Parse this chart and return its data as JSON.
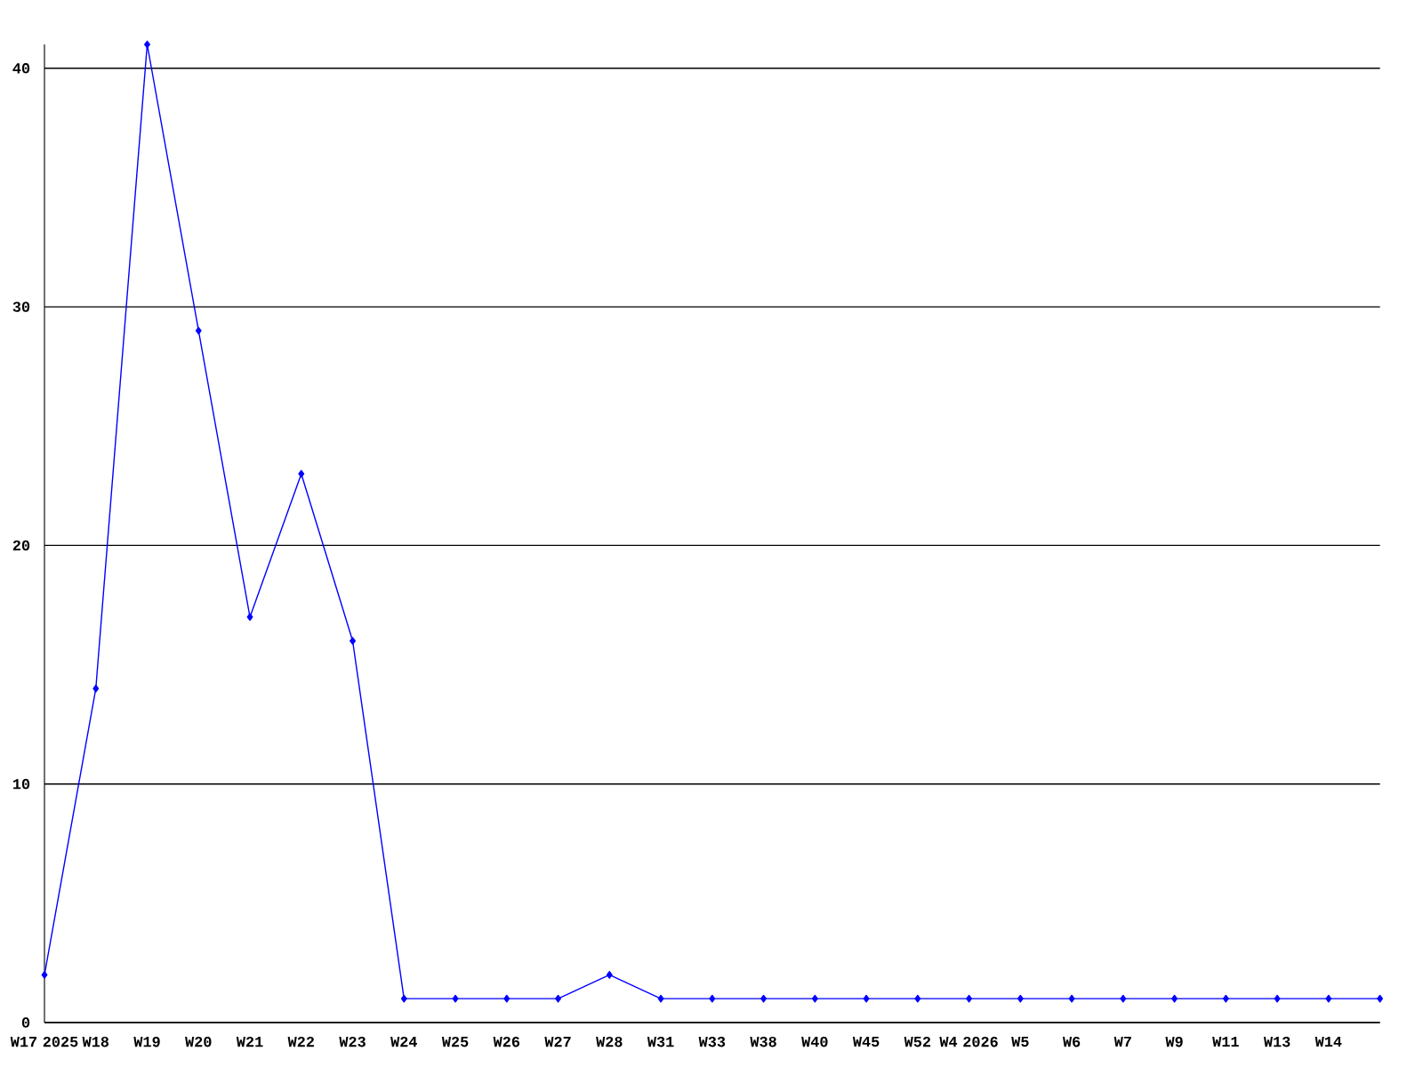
{
  "chart_data": {
    "type": "line",
    "categories": [
      "W17 2025",
      "W18",
      "W19",
      "W20",
      "W21",
      "W22",
      "W23",
      "W24",
      "W25",
      "W26",
      "W27",
      "W28",
      "W31",
      "W33",
      "W38",
      "W40",
      "W45",
      "W52",
      "W4 2026",
      "W5",
      "W6",
      "W7",
      "W9",
      "W11",
      "W13",
      "W14",
      null
    ],
    "series": [
      {
        "color": "#0000ff",
        "values": [
          2,
          14,
          41,
          29,
          17,
          23,
          16,
          1,
          1,
          1,
          1,
          2,
          1,
          1,
          1,
          1,
          1,
          1,
          1,
          1,
          1,
          1,
          1,
          1,
          1,
          1,
          1
        ]
      }
    ],
    "ylim": [
      0,
      41
    ],
    "yticks": [
      0,
      10,
      20,
      30,
      40
    ],
    "grid": "y",
    "marker": "diamond",
    "line_style": "solid"
  }
}
